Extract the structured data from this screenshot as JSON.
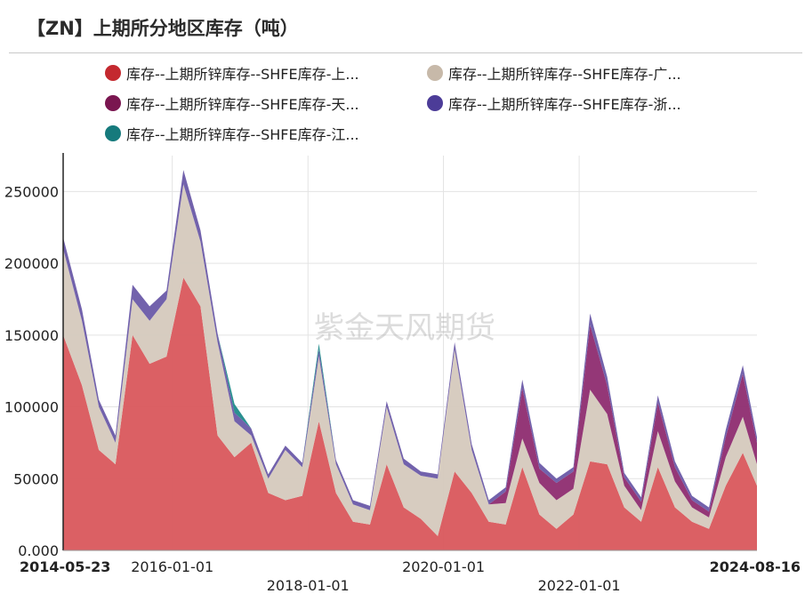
{
  "title": "【ZN】上期所分地区库存（吨）",
  "watermark": "紫金天风期货",
  "chart_data": {
    "type": "area",
    "stacked": true,
    "title": "【ZN】上期所分地区库存（吨）",
    "ylim": [
      0,
      275000
    ],
    "y_ticks": [
      "0.000",
      "50000",
      "100000",
      "150000",
      "200000",
      "250000"
    ],
    "y_tick_values": [
      0,
      50000,
      100000,
      150000,
      200000,
      250000
    ],
    "x_ticks": [
      "2014-05-23",
      "2016-01-01",
      "2018-01-01",
      "2020-01-01",
      "2022-01-01",
      "2024-08-16"
    ],
    "x_range": [
      "2014-05-23",
      "2024-08-16"
    ],
    "grid": true,
    "legend_position": "top",
    "x": [
      "2014-05-23",
      "2014-09-01",
      "2014-12-01",
      "2015-03-01",
      "2015-06-01",
      "2015-09-01",
      "2015-12-01",
      "2016-03-01",
      "2016-06-01",
      "2016-09-01",
      "2016-12-01",
      "2017-03-01",
      "2017-06-01",
      "2017-09-01",
      "2017-12-01",
      "2018-03-01",
      "2018-06-01",
      "2018-09-01",
      "2018-12-01",
      "2019-03-01",
      "2019-06-01",
      "2019-09-01",
      "2019-12-01",
      "2020-03-01",
      "2020-06-01",
      "2020-09-01",
      "2020-12-01",
      "2021-03-01",
      "2021-06-01",
      "2021-09-01",
      "2021-12-01",
      "2022-03-01",
      "2022-06-01",
      "2022-09-01",
      "2022-12-01",
      "2023-03-01",
      "2023-06-01",
      "2023-09-01",
      "2023-12-01",
      "2024-03-01",
      "2024-06-01",
      "2024-08-16"
    ],
    "series": [
      {
        "name": "库存--上期所锌库存--SHFE库存-上...",
        "color": "#d9575c",
        "values": [
          150000,
          115000,
          70000,
          60000,
          150000,
          130000,
          135000,
          190000,
          170000,
          80000,
          65000,
          75000,
          40000,
          35000,
          38000,
          90000,
          40000,
          20000,
          18000,
          60000,
          30000,
          22000,
          10000,
          55000,
          40000,
          20000,
          18000,
          58000,
          25000,
          15000,
          25000,
          62000,
          60000,
          30000,
          20000,
          58000,
          30000,
          20000,
          15000,
          45000,
          68000,
          45000
        ]
      },
      {
        "name": "库存--上期所锌库存--SHFE库存-广...",
        "color": "#d5c9bd",
        "values": [
          60000,
          45000,
          30000,
          15000,
          25000,
          30000,
          40000,
          65000,
          45000,
          65000,
          25000,
          5000,
          10000,
          35000,
          20000,
          45000,
          20000,
          12000,
          10000,
          40000,
          30000,
          30000,
          40000,
          85000,
          30000,
          12000,
          15000,
          20000,
          22000,
          20000,
          18000,
          50000,
          35000,
          15000,
          8000,
          25000,
          18000,
          10000,
          8000,
          20000,
          25000,
          15000
        ]
      },
      {
        "name": "库存--上期所锌库存--SHFE库存-天...",
        "color": "#8e2c70",
        "values": [
          0,
          0,
          0,
          0,
          0,
          0,
          0,
          0,
          0,
          0,
          0,
          0,
          0,
          0,
          0,
          0,
          0,
          0,
          0,
          0,
          0,
          0,
          0,
          0,
          0,
          0,
          8000,
          35000,
          10000,
          12000,
          12000,
          45000,
          20000,
          6000,
          6000,
          20000,
          10000,
          5000,
          4000,
          14000,
          30000,
          15000
        ]
      },
      {
        "name": "库存--上期所锌库存--SHFE库存-浙...",
        "color": "#6a5aa8",
        "values": [
          8000,
          8000,
          5000,
          5000,
          10000,
          10000,
          6000,
          10000,
          8000,
          6000,
          6000,
          5000,
          3000,
          3000,
          3000,
          5000,
          3000,
          3000,
          3000,
          4000,
          4000,
          3000,
          3000,
          5000,
          4000,
          3000,
          3000,
          6000,
          4000,
          3000,
          3000,
          8000,
          6000,
          3000,
          3000,
          5000,
          4000,
          3000,
          3000,
          5000,
          6000,
          4000
        ]
      },
      {
        "name": "库存--上期所锌库存--SHFE库存-江...",
        "color": "#1f8a8a",
        "values": [
          0,
          0,
          0,
          0,
          0,
          0,
          0,
          0,
          0,
          0,
          6000,
          0,
          0,
          0,
          0,
          4000,
          0,
          0,
          0,
          0,
          0,
          0,
          0,
          0,
          0,
          0,
          0,
          0,
          0,
          0,
          0,
          0,
          0,
          0,
          0,
          0,
          0,
          0,
          0,
          0,
          0,
          0
        ]
      }
    ]
  }
}
